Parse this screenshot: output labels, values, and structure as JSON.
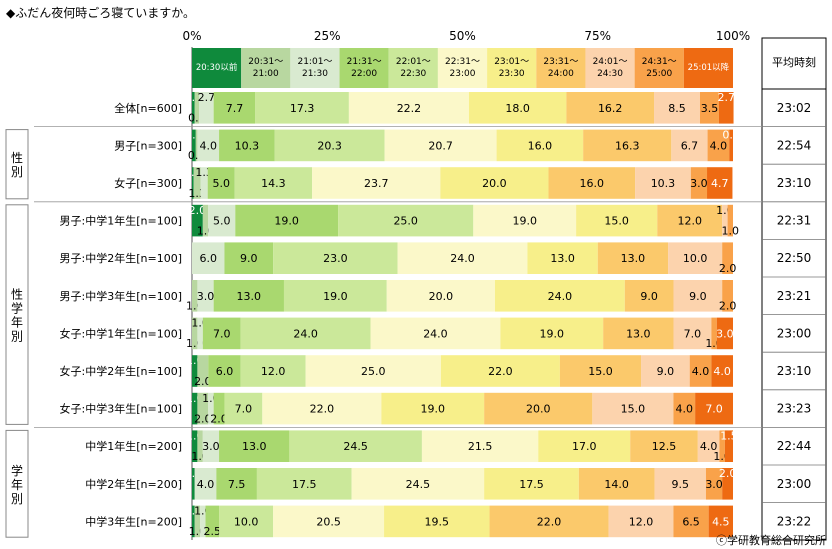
{
  "chart_data": {
    "type": "bar",
    "stacked": true,
    "orientation": "horizontal",
    "title": "◆ふだん夜何時ごろ寝ていますか。",
    "x_ticks": [
      "0%",
      "25%",
      "50%",
      "75%",
      "100%"
    ],
    "xlim": [
      0,
      100
    ],
    "legend": {
      "placement": "top",
      "entries": [
        "20:30以前",
        "20:31〜21:00",
        "21:01〜21:30",
        "21:31〜22:00",
        "22:01〜22:30",
        "22:31〜23:00",
        "23:01〜23:30",
        "23:31〜24:00",
        "24:01〜24:30",
        "24:31〜25:00",
        "25:01以降"
      ],
      "colors": [
        "#0f8a3c",
        "#b8d7a0",
        "#d9ead0",
        "#a9d86f",
        "#cbe89a",
        "#fbf8c9",
        "#f7ef8a",
        "#fbc96b",
        "#fcd3ad",
        "#f9a24a",
        "#ee6a12"
      ]
    },
    "avg_header": "平均時刻",
    "groups": [
      {
        "label": "",
        "start": 0,
        "end": 0
      },
      {
        "label": "性別",
        "start": 1,
        "end": 2
      },
      {
        "label": "性学年別",
        "start": 3,
        "end": 8
      },
      {
        "label": "学年別",
        "start": 9,
        "end": 11
      }
    ],
    "categories": [
      "全体[n=600]",
      "男子[n=300]",
      "女子[n=300]",
      "男子:中学1年生[n=100]",
      "男子:中学2年生[n=100]",
      "男子:中学3年生[n=100]",
      "女子:中学1年生[n=100]",
      "女子:中学2年生[n=100]",
      "女子:中学3年生[n=100]",
      "中学1年生[n=200]",
      "中学2年生[n=200]",
      "中学3年生[n=200]"
    ],
    "rows": [
      [
        0.5,
        0.8,
        2.7,
        7.7,
        17.3,
        22.2,
        18.0,
        16.2,
        8.5,
        3.5,
        2.7
      ],
      [
        0.7,
        0.3,
        4.0,
        10.3,
        20.3,
        20.7,
        16.0,
        16.3,
        6.7,
        4.0,
        0.7
      ],
      [
        0.3,
        1.3,
        1.3,
        5.0,
        14.3,
        23.7,
        20.0,
        16.0,
        10.3,
        3.0,
        4.7
      ],
      [
        2.0,
        1.0,
        5.0,
        19.0,
        25.0,
        19.0,
        15.0,
        12.0,
        1.0,
        1.0,
        0.0
      ],
      [
        0.0,
        0.0,
        6.0,
        9.0,
        23.0,
        24.0,
        13.0,
        13.0,
        10.0,
        2.0,
        0.0
      ],
      [
        0.0,
        1.0,
        3.0,
        13.0,
        19.0,
        20.0,
        24.0,
        9.0,
        9.0,
        2.0,
        0.0
      ],
      [
        0.0,
        1.0,
        1.0,
        7.0,
        24.0,
        24.0,
        19.0,
        13.0,
        7.0,
        1.0,
        3.0
      ],
      [
        1.0,
        2.0,
        0.0,
        6.0,
        12.0,
        25.0,
        22.0,
        15.0,
        9.0,
        4.0,
        4.0
      ],
      [
        1.0,
        2.0,
        1.0,
        2.0,
        7.0,
        22.0,
        19.0,
        20.0,
        15.0,
        4.0,
        7.0
      ],
      [
        1.0,
        1.0,
        3.0,
        13.0,
        24.5,
        21.5,
        17.0,
        12.5,
        4.0,
        1.0,
        1.5
      ],
      [
        0.5,
        0.0,
        4.0,
        7.5,
        17.5,
        24.5,
        17.5,
        14.0,
        9.5,
        3.0,
        2.0
      ],
      [
        0.5,
        1.0,
        1.0,
        2.5,
        10.0,
        20.5,
        19.5,
        22.0,
        12.0,
        6.5,
        4.5
      ]
    ],
    "averages": [
      "23:02",
      "22:54",
      "23:10",
      "22:31",
      "22:50",
      "23:21",
      "23:00",
      "23:10",
      "23:23",
      "22:44",
      "23:00",
      "23:22"
    ],
    "source": "ⓒ学研教育総合研究所"
  }
}
